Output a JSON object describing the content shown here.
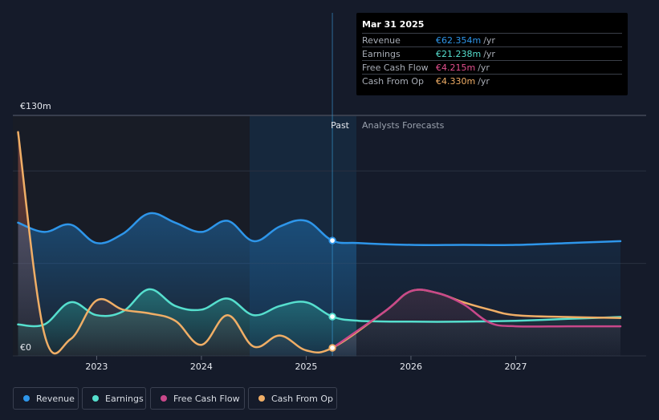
{
  "chart_data": {
    "type": "area",
    "title": "",
    "ylabel": "",
    "xlabel": "",
    "y_axis_labels": {
      "top": "€130m",
      "bottom": "€0"
    },
    "ylim": [
      0,
      130
    ],
    "x_ticks": [
      2023,
      2024,
      2025,
      2026,
      2027
    ],
    "xlim": [
      2022.2,
      2028.0
    ],
    "past_label": "Past",
    "forecast_label": "Analysts Forecasts",
    "present_x": 2025.25,
    "series": [
      {
        "name": "Revenue",
        "color": "#2e96ea",
        "x": [
          2022.25,
          2022.5,
          2022.75,
          2023.0,
          2023.25,
          2023.5,
          2023.75,
          2024.0,
          2024.25,
          2024.5,
          2024.75,
          2025.0,
          2025.25,
          2025.5,
          2026.0,
          2026.5,
          2027.0,
          2027.5,
          2028.0
        ],
        "y": [
          72,
          67,
          71,
          61,
          66,
          77,
          72,
          67,
          73,
          62,
          70,
          73,
          62.354,
          61,
          60,
          60,
          60,
          61,
          62
        ]
      },
      {
        "name": "Earnings",
        "color": "#56dfce",
        "x": [
          2022.25,
          2022.5,
          2022.75,
          2023.0,
          2023.25,
          2023.5,
          2023.75,
          2024.0,
          2024.25,
          2024.5,
          2024.75,
          2025.0,
          2025.25,
          2025.5,
          2026.0,
          2026.5,
          2027.0,
          2027.5,
          2028.0
        ],
        "y": [
          17,
          17,
          29,
          22,
          24,
          36,
          27,
          25,
          31,
          22,
          27,
          29,
          21.238,
          19,
          18.5,
          18.5,
          19,
          20,
          21
        ]
      },
      {
        "name": "Free Cash Flow",
        "color": "#c9488a",
        "x": [
          2025.25,
          2025.75,
          2026.0,
          2026.25,
          2026.5,
          2026.75,
          2027.0,
          2027.5,
          2028.0
        ],
        "y": [
          4.215,
          24,
          35,
          34,
          28,
          18,
          16,
          16,
          16
        ]
      },
      {
        "name": "Cash From Op",
        "color": "#f0ae66",
        "x": [
          2022.25,
          2022.5,
          2022.75,
          2023.0,
          2023.25,
          2023.5,
          2023.75,
          2024.0,
          2024.25,
          2024.5,
          2024.75,
          2025.0,
          2025.25,
          2025.75,
          2026.0,
          2026.25,
          2026.5,
          2026.75,
          2027.0,
          2027.5,
          2028.0
        ],
        "y": [
          121,
          12,
          9,
          30,
          25,
          23,
          19,
          6,
          22,
          5,
          11,
          3,
          4.33,
          24,
          35,
          34,
          29,
          25,
          22,
          21,
          20.5
        ]
      }
    ],
    "tooltip": {
      "date": "Mar 31 2025",
      "unit": "/yr",
      "rows": [
        {
          "label": "Revenue",
          "value": "€62.354m",
          "color": "#2e96ea"
        },
        {
          "label": "Earnings",
          "value": "€21.238m",
          "color": "#56dfce"
        },
        {
          "label": "Free Cash Flow",
          "value": "€4.215m",
          "color": "#e4508f"
        },
        {
          "label": "Cash From Op",
          "value": "€4.330m",
          "color": "#f0ae66"
        }
      ]
    },
    "legend": [
      {
        "label": "Revenue",
        "color": "#2e96ea"
      },
      {
        "label": "Earnings",
        "color": "#56dfce"
      },
      {
        "label": "Free Cash Flow",
        "color": "#c9488a"
      },
      {
        "label": "Cash From Op",
        "color": "#f0ae66"
      }
    ]
  }
}
